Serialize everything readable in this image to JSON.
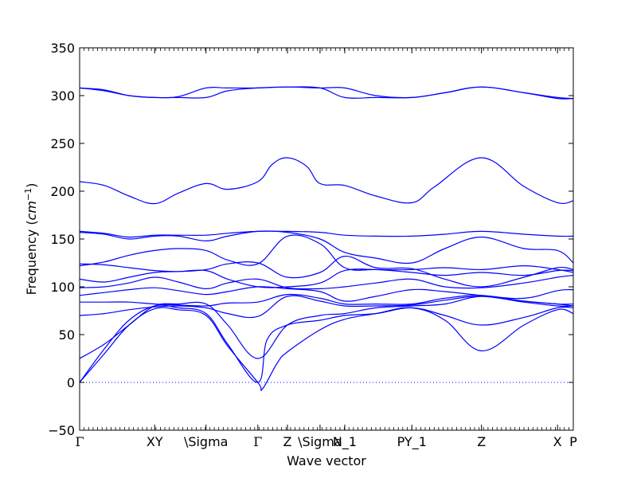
{
  "chart_data": {
    "type": "line",
    "title": "",
    "xlabel": "Wave vector",
    "ylabel_prefix": "Frequency (",
    "ylabel_unit": "cm",
    "ylabel_exp": "−1",
    "ylabel_suffix": ")",
    "ylim": [
      -50,
      350
    ],
    "yticks": [
      -50,
      0,
      50,
      100,
      150,
      200,
      250,
      300,
      350
    ],
    "xlim": [
      0,
      1
    ],
    "high_symmetry_points": [
      {
        "label": "Γ",
        "x": 0.0
      },
      {
        "label": "XY",
        "x": 0.152
      },
      {
        "label": "\\Sigma",
        "x": 0.256
      },
      {
        "label": "Γ",
        "x": 0.361
      },
      {
        "label": "Z",
        "x": 0.421
      },
      {
        "label": "\\Sigma",
        "x": 0.487
      },
      {
        "label": "N_1",
        "x": 0.537
      },
      {
        "label": "PY_1",
        "x": 0.673
      },
      {
        "label": "Z",
        "x": 0.814
      },
      {
        "label": "X",
        "x": 0.968
      },
      {
        "label": "P",
        "x": 1.0
      }
    ],
    "zero_line": {
      "y": 0,
      "style": "dotted",
      "color": "#0000ff"
    },
    "grid": false,
    "color": "#0000ff",
    "series": [
      {
        "x": [
          0,
          0.05,
          0.1,
          0.152,
          0.2,
          0.256,
          0.3,
          0.361,
          0.421,
          0.487,
          0.537,
          0.6,
          0.673,
          0.74,
          0.814,
          0.9,
          0.968,
          1.0
        ],
        "y": [
          308,
          306,
          300,
          298,
          299,
          308,
          308,
          308,
          309,
          308,
          298,
          298,
          298,
          303,
          309,
          303,
          297,
          297
        ]
      },
      {
        "x": [
          0,
          0.05,
          0.1,
          0.152,
          0.2,
          0.256,
          0.3,
          0.361,
          0.421,
          0.487,
          0.537,
          0.6,
          0.673,
          0.74,
          0.814,
          0.9,
          0.968,
          1.0
        ],
        "y": [
          308,
          305,
          300,
          298,
          298,
          298,
          305,
          308,
          309,
          308,
          308,
          300,
          298,
          303,
          309,
          303,
          298,
          297
        ]
      },
      {
        "x": [
          0,
          0.05,
          0.1,
          0.152,
          0.2,
          0.256,
          0.3,
          0.361,
          0.39,
          0.421,
          0.46,
          0.487,
          0.537,
          0.6,
          0.673,
          0.72,
          0.814,
          0.9,
          0.968,
          1.0
        ],
        "y": [
          210,
          206,
          195,
          187,
          198,
          208,
          202,
          210,
          228,
          235,
          226,
          208,
          206,
          195,
          188,
          205,
          235,
          205,
          188,
          190
        ]
      },
      {
        "x": [
          0,
          0.05,
          0.1,
          0.152,
          0.2,
          0.256,
          0.3,
          0.361,
          0.421,
          0.487,
          0.537,
          0.6,
          0.673,
          0.74,
          0.814,
          0.9,
          0.968,
          1.0
        ],
        "y": [
          158,
          156,
          152,
          154,
          154,
          154,
          156,
          158,
          158,
          157,
          154,
          153,
          153,
          155,
          158,
          155,
          153,
          153
        ]
      },
      {
        "x": [
          0,
          0.05,
          0.1,
          0.152,
          0.2,
          0.256,
          0.3,
          0.361,
          0.421,
          0.487,
          0.537,
          0.6,
          0.673,
          0.74,
          0.814,
          0.9,
          0.968,
          1.0
        ],
        "y": [
          157,
          155,
          150,
          153,
          153,
          148,
          153,
          158,
          157,
          150,
          136,
          130,
          125,
          140,
          152,
          140,
          138,
          125
        ]
      },
      {
        "x": [
          0,
          0.05,
          0.1,
          0.152,
          0.2,
          0.256,
          0.3,
          0.361,
          0.421,
          0.487,
          0.537,
          0.6,
          0.673,
          0.74,
          0.814,
          0.9,
          0.968,
          1.0
        ],
        "y": [
          122,
          126,
          133,
          138,
          140,
          138,
          128,
          124,
          153,
          145,
          120,
          118,
          118,
          120,
          118,
          122,
          118,
          115
        ]
      },
      {
        "x": [
          0,
          0.05,
          0.1,
          0.152,
          0.2,
          0.256,
          0.3,
          0.361,
          0.421,
          0.487,
          0.537,
          0.6,
          0.673,
          0.74,
          0.814,
          0.9,
          0.968,
          1.0
        ],
        "y": [
          124,
          123,
          120,
          117,
          116,
          118,
          124,
          125,
          110,
          115,
          132,
          120,
          119,
          108,
          100,
          110,
          120,
          118
        ]
      },
      {
        "x": [
          0,
          0.05,
          0.1,
          0.152,
          0.2,
          0.256,
          0.3,
          0.361,
          0.421,
          0.487,
          0.537,
          0.6,
          0.673,
          0.74,
          0.814,
          0.9,
          0.968,
          1.0
        ],
        "y": [
          108,
          105,
          110,
          115,
          116,
          117,
          108,
          100,
          100,
          104,
          117,
          118,
          115,
          112,
          115,
          112,
          117,
          117
        ]
      },
      {
        "x": [
          0,
          0.05,
          0.1,
          0.152,
          0.2,
          0.256,
          0.3,
          0.361,
          0.421,
          0.487,
          0.537,
          0.6,
          0.673,
          0.74,
          0.814,
          0.9,
          0.968,
          1.0
        ],
        "y": [
          99,
          100,
          104,
          110,
          105,
          98,
          104,
          108,
          99,
          98,
          100,
          104,
          108,
          100,
          99,
          104,
          110,
          112
        ]
      },
      {
        "x": [
          0,
          0.05,
          0.1,
          0.152,
          0.2,
          0.256,
          0.3,
          0.361,
          0.421,
          0.487,
          0.537,
          0.6,
          0.673,
          0.74,
          0.814,
          0.9,
          0.968,
          1.0
        ],
        "y": [
          91,
          94,
          97,
          99,
          96,
          92,
          95,
          100,
          98,
          95,
          85,
          90,
          97,
          95,
          91,
          88,
          96,
          97
        ]
      },
      {
        "x": [
          0,
          0.05,
          0.1,
          0.152,
          0.2,
          0.256,
          0.3,
          0.361,
          0.421,
          0.487,
          0.537,
          0.6,
          0.673,
          0.74,
          0.814,
          0.9,
          0.968,
          1.0
        ],
        "y": [
          84,
          84,
          84,
          82,
          81,
          80,
          83,
          84,
          92,
          88,
          82,
          82,
          82,
          88,
          91,
          85,
          82,
          82
        ]
      },
      {
        "x": [
          0,
          0.05,
          0.1,
          0.152,
          0.2,
          0.256,
          0.3,
          0.361,
          0.421,
          0.487,
          0.537,
          0.6,
          0.673,
          0.74,
          0.814,
          0.9,
          0.968,
          1.0
        ],
        "y": [
          70,
          72,
          76,
          79,
          80,
          78,
          72,
          69,
          90,
          85,
          80,
          80,
          81,
          86,
          90,
          84,
          80,
          80
        ]
      },
      {
        "x": [
          0,
          0.05,
          0.1,
          0.152,
          0.2,
          0.256,
          0.3,
          0.361,
          0.421,
          0.487,
          0.537,
          0.6,
          0.673,
          0.74,
          0.814,
          0.9,
          0.968,
          1.0
        ],
        "y": [
          25,
          40,
          60,
          80,
          82,
          82,
          60,
          25,
          60,
          70,
          72,
          78,
          80,
          82,
          90,
          85,
          82,
          80
        ]
      },
      {
        "x": [
          0,
          0.05,
          0.1,
          0.152,
          0.2,
          0.256,
          0.3,
          0.361,
          0.38,
          0.421,
          0.487,
          0.537,
          0.6,
          0.673,
          0.74,
          0.814,
          0.9,
          0.968,
          1.0
        ],
        "y": [
          0,
          35,
          65,
          80,
          78,
          72,
          40,
          0,
          45,
          60,
          65,
          70,
          72,
          78,
          70,
          60,
          68,
          78,
          78
        ]
      },
      {
        "x": [
          0,
          0.05,
          0.1,
          0.152,
          0.2,
          0.256,
          0.3,
          0.361,
          0.37,
          0.4,
          0.421,
          0.487,
          0.537,
          0.6,
          0.673,
          0.74,
          0.814,
          0.9,
          0.968,
          1.0
        ],
        "y": [
          0,
          30,
          60,
          77,
          76,
          70,
          38,
          0,
          -7,
          20,
          32,
          55,
          66,
          72,
          78,
          65,
          33,
          60,
          76,
          72
        ]
      }
    ]
  }
}
